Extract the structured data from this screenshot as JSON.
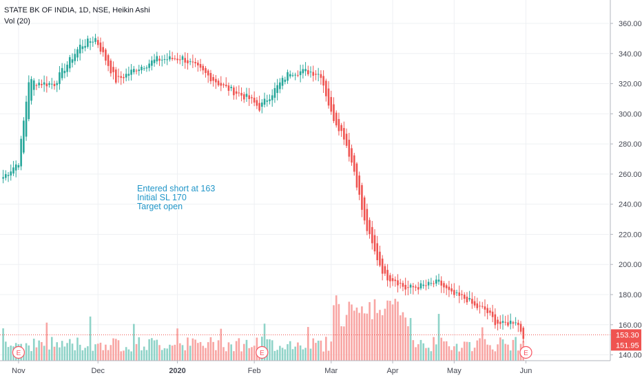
{
  "chart_data": {
    "type": "candlestick",
    "title": "STATE BK OF INDIA, 1D, NSE, Heikin Ashi",
    "indicator_label": "Vol (20)",
    "y_ticks": [
      "360.00",
      "340.00",
      "320.00",
      "300.00",
      "280.00",
      "260.00",
      "240.00",
      "220.00",
      "200.00",
      "180.00",
      "160.00",
      "140.00"
    ],
    "y_tick_values": [
      360,
      340,
      320,
      300,
      280,
      260,
      240,
      220,
      200,
      180,
      160,
      140
    ],
    "ylim": [
      128,
      374
    ],
    "x_ticks": [
      "Nov",
      "Dec",
      "2020",
      "Feb",
      "Mar",
      "Apr",
      "May",
      "Jun"
    ],
    "x_tick_index": [
      6,
      37,
      68,
      98,
      128,
      152,
      176,
      204
    ],
    "x_tick_bold": [
      false,
      false,
      true,
      false,
      false,
      false,
      false,
      false
    ],
    "grid": true,
    "current_price_label": "153.30",
    "current_price": 153.3,
    "secondary_price_label": "151.95",
    "secondary_price": 151.95,
    "earnings_markers": [
      "E",
      "E",
      "E"
    ],
    "earnings_index": [
      6,
      101,
      204
    ],
    "annotations": [
      "Entered short at 163",
      "Initial SL 170",
      "Target open"
    ],
    "colors": {
      "up": "#26a69a",
      "down": "#ef5350",
      "vol_up": "#8fd3c8",
      "vol_down": "#f8a5a3",
      "price_line": "#ef5350",
      "annotation": "#2196c8",
      "grid": "#eef0f3",
      "axis_text": "#434651"
    },
    "ohlc_anchors": [
      [
        0,
        258
      ],
      [
        6,
        268
      ],
      [
        10,
        322
      ],
      [
        16,
        320
      ],
      [
        20,
        320
      ],
      [
        23,
        328
      ],
      [
        30,
        345
      ],
      [
        36,
        350
      ],
      [
        44,
        322
      ],
      [
        52,
        330
      ],
      [
        60,
        336
      ],
      [
        70,
        337
      ],
      [
        76,
        330
      ],
      [
        86,
        318
      ],
      [
        96,
        310
      ],
      [
        100,
        304
      ],
      [
        104,
        312
      ],
      [
        112,
        328
      ],
      [
        120,
        328
      ],
      [
        124,
        326
      ],
      [
        128,
        300
      ],
      [
        133,
        285
      ],
      [
        137,
        262
      ],
      [
        141,
        228
      ],
      [
        145,
        208
      ],
      [
        149,
        192
      ],
      [
        153,
        190
      ],
      [
        157,
        184
      ],
      [
        165,
        186
      ],
      [
        170,
        188
      ],
      [
        175,
        180
      ],
      [
        181,
        177
      ],
      [
        184,
        172
      ],
      [
        188,
        170
      ],
      [
        192,
        162
      ],
      [
        195,
        160
      ],
      [
        200,
        163
      ],
      [
        203,
        153
      ]
    ],
    "volume_scale_max": 100
  }
}
